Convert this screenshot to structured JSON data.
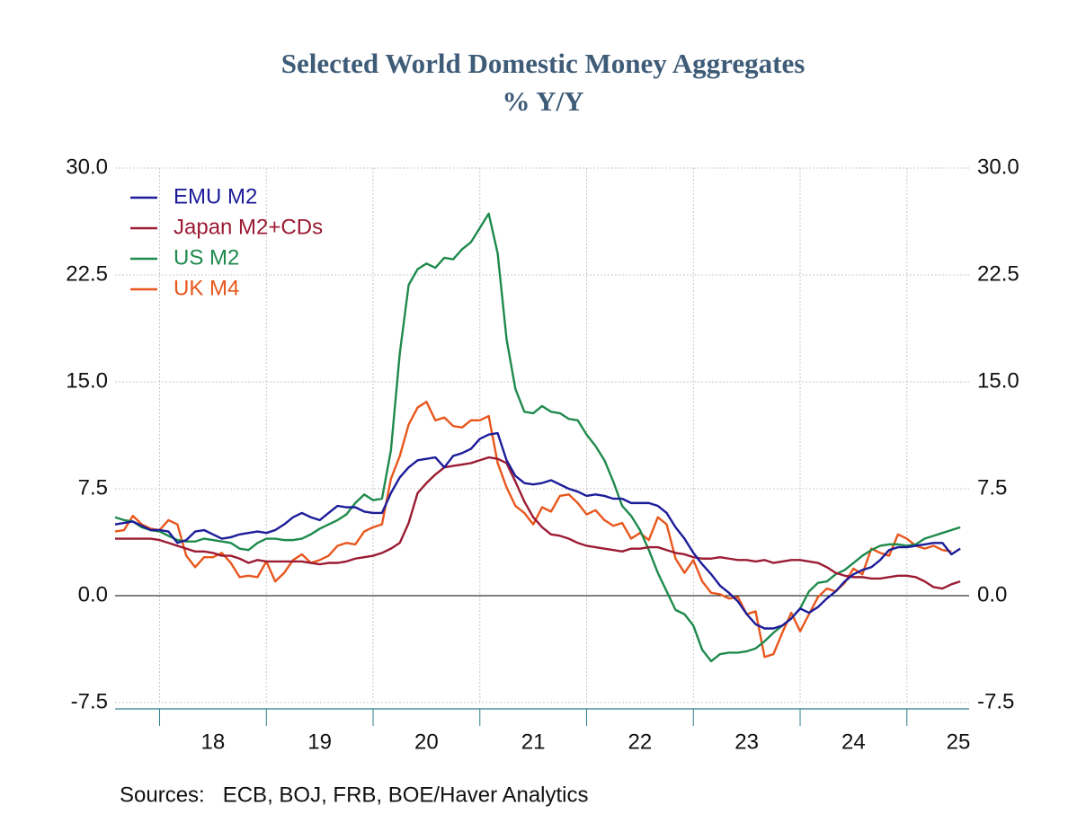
{
  "chart_data": {
    "type": "line",
    "title": "Selected World Domestic Money Aggregates",
    "subtitle": "% Y/Y",
    "source": "Sources:   ECB, BOJ, FRB, BOE/Haver Analytics",
    "x": [
      17.583,
      17.667,
      17.75,
      17.833,
      17.917,
      18,
      18.083,
      18.167,
      18.25,
      18.333,
      18.417,
      18.5,
      18.583,
      18.667,
      18.75,
      18.833,
      18.917,
      19,
      19.083,
      19.167,
      19.25,
      19.333,
      19.417,
      19.5,
      19.583,
      19.667,
      19.75,
      19.833,
      19.917,
      20,
      20.083,
      20.167,
      20.25,
      20.333,
      20.417,
      20.5,
      20.583,
      20.667,
      20.75,
      20.833,
      20.917,
      21,
      21.083,
      21.167,
      21.25,
      21.333,
      21.417,
      21.5,
      21.583,
      21.667,
      21.75,
      21.833,
      21.917,
      22,
      22.083,
      22.167,
      22.25,
      22.333,
      22.417,
      22.5,
      22.583,
      22.667,
      22.75,
      22.833,
      22.917,
      23,
      23.083,
      23.167,
      23.25,
      23.333,
      23.417,
      23.5,
      23.583,
      23.667,
      23.75,
      23.833,
      23.917,
      24,
      24.083,
      24.167,
      24.25,
      24.333,
      24.417,
      24.5,
      24.583,
      24.667,
      24.75,
      24.833,
      24.917,
      25,
      25.083,
      25.167,
      25.25,
      25.333,
      25.417,
      25.5
    ],
    "series": [
      {
        "name": "EMU M2",
        "color": "#1c1c9a",
        "values": [
          5.0,
          5.1,
          5.2,
          4.9,
          4.6,
          4.6,
          4.5,
          3.7,
          3.9,
          4.5,
          4.6,
          4.3,
          4.0,
          4.1,
          4.3,
          4.4,
          4.5,
          4.4,
          4.6,
          5.0,
          5.5,
          5.8,
          5.5,
          5.3,
          5.8,
          6.3,
          6.2,
          6.2,
          5.9,
          5.8,
          5.8,
          7.2,
          8.3,
          9.0,
          9.5,
          9.6,
          9.7,
          9.0,
          9.8,
          10.0,
          10.3,
          11.0,
          11.3,
          11.4,
          9.5,
          8.4,
          7.9,
          7.8,
          7.9,
          8.1,
          7.8,
          7.5,
          7.3,
          7.0,
          7.1,
          7.0,
          6.8,
          6.8,
          6.5,
          6.5,
          6.5,
          6.3,
          5.8,
          4.8,
          4.0,
          3.0,
          2.2,
          1.5,
          0.7,
          0.2,
          -0.4,
          -1.3,
          -2.0,
          -2.3,
          -2.3,
          -2.1,
          -1.6,
          -0.9,
          -1.2,
          -0.8,
          -0.2,
          0.3,
          1.0,
          1.5,
          1.8,
          2.0,
          2.5,
          3.2,
          3.4,
          3.4,
          3.5,
          3.6,
          3.7,
          3.7,
          2.9,
          3.3
        ]
      },
      {
        "name": "Japan M2+CDs",
        "color": "#9b1b33",
        "values": [
          4.0,
          4.0,
          4.0,
          4.0,
          4.0,
          3.9,
          3.7,
          3.5,
          3.3,
          3.1,
          3.1,
          3.0,
          2.8,
          2.8,
          2.6,
          2.3,
          2.5,
          2.4,
          2.4,
          2.4,
          2.4,
          2.4,
          2.3,
          2.2,
          2.3,
          2.3,
          2.4,
          2.6,
          2.7,
          2.8,
          3.0,
          3.3,
          3.7,
          5.1,
          7.2,
          7.9,
          8.5,
          9.0,
          9.1,
          9.2,
          9.3,
          9.5,
          9.7,
          9.6,
          9.3,
          8.0,
          6.6,
          5.5,
          4.8,
          4.3,
          4.2,
          4.0,
          3.7,
          3.5,
          3.4,
          3.3,
          3.2,
          3.1,
          3.3,
          3.3,
          3.4,
          3.4,
          3.2,
          3.0,
          2.9,
          2.7,
          2.6,
          2.6,
          2.7,
          2.6,
          2.5,
          2.5,
          2.4,
          2.5,
          2.3,
          2.4,
          2.5,
          2.5,
          2.4,
          2.3,
          2.0,
          1.6,
          1.4,
          1.3,
          1.3,
          1.2,
          1.2,
          1.3,
          1.4,
          1.4,
          1.3,
          1.0,
          0.6,
          0.5,
          0.8,
          1.0
        ]
      },
      {
        "name": "US M2",
        "color": "#1e8a4c",
        "values": [
          5.5,
          5.3,
          5.2,
          4.8,
          4.6,
          4.5,
          4.2,
          3.9,
          3.8,
          3.8,
          4.0,
          3.9,
          3.8,
          3.7,
          3.3,
          3.2,
          3.7,
          4.0,
          4.0,
          3.9,
          3.9,
          4.0,
          4.3,
          4.7,
          5.0,
          5.3,
          5.7,
          6.5,
          7.1,
          6.7,
          6.8,
          10.2,
          17.0,
          21.8,
          22.9,
          23.3,
          23.0,
          23.7,
          23.6,
          24.3,
          24.8,
          25.8,
          26.8,
          24.0,
          18.0,
          14.5,
          12.9,
          12.8,
          13.3,
          12.9,
          12.8,
          12.4,
          12.3,
          11.3,
          10.5,
          9.5,
          8.0,
          6.3,
          5.6,
          4.6,
          3.2,
          1.6,
          0.3,
          -1.0,
          -1.3,
          -2.1,
          -3.8,
          -4.6,
          -4.1,
          -4.0,
          -4.0,
          -3.9,
          -3.7,
          -3.2,
          -2.6,
          -2.1,
          -1.6,
          -0.9,
          0.3,
          0.9,
          1.0,
          1.5,
          1.8,
          2.3,
          2.8,
          3.2,
          3.5,
          3.6,
          3.6,
          3.5,
          3.6,
          4.0,
          4.2,
          4.4,
          4.6,
          4.8
        ]
      },
      {
        "name": "UK M4",
        "color": "#e8561c",
        "values": [
          4.5,
          4.6,
          5.6,
          5.0,
          4.7,
          4.6,
          5.3,
          5.0,
          2.8,
          2.0,
          2.7,
          2.7,
          3.0,
          2.3,
          1.3,
          1.4,
          1.3,
          2.4,
          1.0,
          1.6,
          2.5,
          2.9,
          2.3,
          2.5,
          2.8,
          3.5,
          3.7,
          3.6,
          4.5,
          4.8,
          5.0,
          8.2,
          9.8,
          12.0,
          13.2,
          13.6,
          12.3,
          12.5,
          11.9,
          11.8,
          12.3,
          12.3,
          12.6,
          9.3,
          7.6,
          6.3,
          5.8,
          5.0,
          6.2,
          5.9,
          7.0,
          7.1,
          6.5,
          5.7,
          6.0,
          5.3,
          4.9,
          5.1,
          4.0,
          4.4,
          3.9,
          5.5,
          5.0,
          2.6,
          1.6,
          2.5,
          1.0,
          0.2,
          0.1,
          -0.2,
          -0.1,
          -1.3,
          -1.1,
          -4.3,
          -4.1,
          -2.6,
          -1.2,
          -2.5,
          -1.3,
          -0.1,
          0.5,
          0.3,
          0.9,
          1.9,
          1.5,
          3.3,
          3.0,
          2.8,
          4.3,
          4.0,
          3.5,
          3.3,
          3.5,
          3.2,
          3.1,
          null
        ]
      }
    ],
    "xlim": [
      17.583,
      25.583
    ],
    "xticks": [
      {
        "value": 18.5,
        "label": "18"
      },
      {
        "value": 19.5,
        "label": "19"
      },
      {
        "value": 20.5,
        "label": "20"
      },
      {
        "value": 21.5,
        "label": "21"
      },
      {
        "value": 22.5,
        "label": "22"
      },
      {
        "value": 23.5,
        "label": "23"
      },
      {
        "value": 24.5,
        "label": "24"
      },
      {
        "value": 25.5,
        "label": "25"
      }
    ],
    "xminor": [
      18,
      19,
      20,
      21,
      22,
      23,
      24,
      25
    ],
    "ylim": [
      -7.5,
      30
    ],
    "yticks": [
      -7.5,
      {
        "value": 0,
        "label": "0.0"
      },
      7.5,
      {
        "value": 15,
        "label": "15.0"
      },
      22.5,
      {
        "value": 30,
        "label": "30.0"
      }
    ],
    "y2lim": [
      -7.5,
      30
    ],
    "y2ticks": [
      -7.5,
      {
        "value": 0,
        "label": "0.0"
      },
      7.5,
      {
        "value": 15,
        "label": "15.0"
      },
      22.5,
      {
        "value": 30,
        "label": "30.0"
      }
    ],
    "grid": true,
    "legend": "top-left"
  }
}
